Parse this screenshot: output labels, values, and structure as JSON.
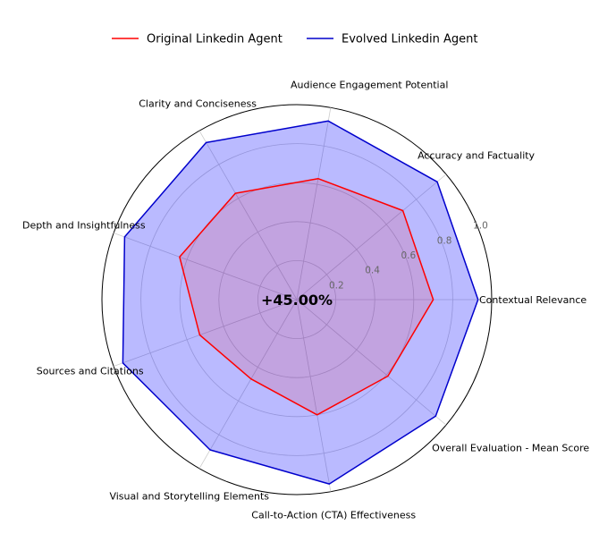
{
  "chart_data": {
    "type": "radar",
    "title": "",
    "center_annotation": "+45.00%",
    "categories": [
      "Contextual Relevance",
      "Accuracy and Factuality",
      "Audience Engagement Potential",
      "Clarity and Conciseness",
      "Depth and Insightfulness",
      "Sources and Citations",
      "Visual and Storytelling Elements",
      "Call-to-Action (CTA) Effectiveness",
      "Overall Evaluation - Mean Score"
    ],
    "r_ticks": [
      "0.2",
      "0.4",
      "0.6",
      "0.8",
      "1.0"
    ],
    "rlim": [
      0,
      1.0
    ],
    "grid": true,
    "legend_position": "top-center",
    "series": [
      {
        "name": "Original Linkedin Agent",
        "color": "#ff0000",
        "values": [
          0.7,
          0.71,
          0.63,
          0.63,
          0.64,
          0.53,
          0.47,
          0.6,
          0.61
        ]
      },
      {
        "name": "Evolved Linkedin Agent",
        "color": "#0000cc",
        "fill": "#0000ff",
        "values": [
          0.93,
          0.94,
          0.93,
          0.93,
          0.94,
          0.95,
          0.89,
          0.96,
          0.93
        ]
      }
    ]
  }
}
